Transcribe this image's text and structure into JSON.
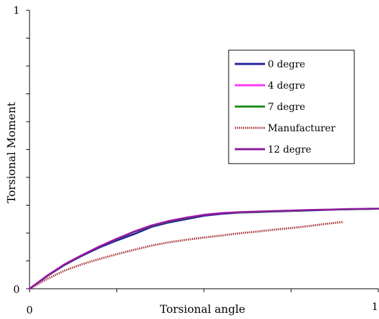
{
  "chart_data": {
    "type": "line",
    "title": "",
    "xlabel": "Torsional angle",
    "ylabel": "Torsional Moment",
    "xlim": [
      0,
      1
    ],
    "ylim": [
      0,
      1
    ],
    "x_tick_labels": [
      "0",
      "1"
    ],
    "y_tick_labels": [
      "0",
      "1"
    ],
    "grid": false,
    "legend_position": "top-right",
    "series": [
      {
        "name": "0 degre",
        "color": "#1f1f9a",
        "style": "solid",
        "x": [
          0,
          0.05,
          0.1,
          0.15,
          0.2,
          0.25,
          0.3,
          0.35,
          0.4,
          0.45,
          0.5,
          0.55,
          0.6,
          0.65,
          0.7,
          0.75,
          0.8,
          0.85,
          0.9,
          0.95,
          1.0
        ],
        "y": [
          0,
          0.045,
          0.085,
          0.118,
          0.148,
          0.173,
          0.196,
          0.222,
          0.238,
          0.25,
          0.262,
          0.269,
          0.273,
          0.275,
          0.277,
          0.279,
          0.281,
          0.283,
          0.285,
          0.286,
          0.287
        ]
      },
      {
        "name": "4 degre",
        "color": "#ff33ff",
        "style": "solid",
        "x": [
          0,
          0.05,
          0.1,
          0.15,
          0.2,
          0.25,
          0.3,
          0.35,
          0.4,
          0.45,
          0.5,
          0.55,
          0.6,
          0.65,
          0.7,
          0.75,
          0.8,
          0.85,
          0.9,
          0.95,
          1.0
        ],
        "y": [
          0,
          0.047,
          0.088,
          0.121,
          0.152,
          0.18,
          0.206,
          0.228,
          0.244,
          0.256,
          0.266,
          0.272,
          0.275,
          0.277,
          0.279,
          0.281,
          0.283,
          0.284,
          0.286,
          0.287,
          0.288
        ]
      },
      {
        "name": "7 degre",
        "color": "#1a8a1a",
        "style": "solid",
        "x": [
          0,
          0.05,
          0.1,
          0.15,
          0.2,
          0.25,
          0.3,
          0.35,
          0.4,
          0.45,
          0.5,
          0.55,
          0.6,
          0.65,
          0.7,
          0.75,
          0.8,
          0.85,
          0.9,
          0.95,
          1.0
        ],
        "y": [
          0,
          0.046,
          0.087,
          0.12,
          0.151,
          0.178,
          0.204,
          0.226,
          0.242,
          0.254,
          0.265,
          0.271,
          0.274,
          0.276,
          0.278,
          0.28,
          0.282,
          0.284,
          0.285,
          0.286,
          0.287
        ]
      },
      {
        "name": "Manufacturer",
        "color": "#a52a2a",
        "style": "dotted",
        "x": [
          0,
          0.05,
          0.1,
          0.15,
          0.2,
          0.25,
          0.3,
          0.35,
          0.4,
          0.45,
          0.5,
          0.55,
          0.6,
          0.65,
          0.7,
          0.75,
          0.8,
          0.85,
          0.9
        ],
        "y": [
          0,
          0.035,
          0.065,
          0.088,
          0.107,
          0.124,
          0.14,
          0.155,
          0.167,
          0.176,
          0.184,
          0.191,
          0.199,
          0.205,
          0.212,
          0.218,
          0.225,
          0.233,
          0.24
        ]
      },
      {
        "name": "12 degre",
        "color": "#8a1a9a",
        "style": "solid",
        "x": [
          0,
          0.05,
          0.1,
          0.15,
          0.2,
          0.25,
          0.3,
          0.35,
          0.4,
          0.45,
          0.5,
          0.55,
          0.6,
          0.65,
          0.7,
          0.75,
          0.8,
          0.85,
          0.9,
          0.95,
          1.0
        ],
        "y": [
          0,
          0.046,
          0.087,
          0.12,
          0.151,
          0.179,
          0.205,
          0.227,
          0.243,
          0.255,
          0.265,
          0.271,
          0.275,
          0.277,
          0.279,
          0.281,
          0.283,
          0.284,
          0.286,
          0.287,
          0.288
        ]
      }
    ]
  }
}
